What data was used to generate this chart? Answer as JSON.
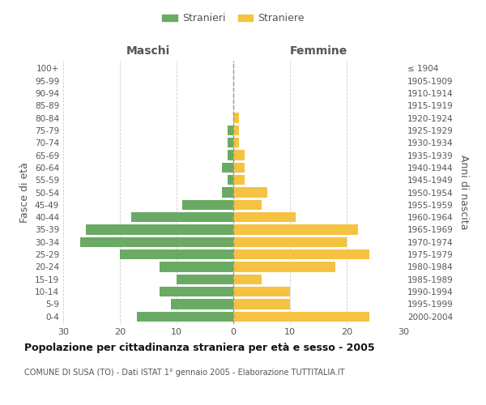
{
  "age_groups": [
    "0-4",
    "5-9",
    "10-14",
    "15-19",
    "20-24",
    "25-29",
    "30-34",
    "35-39",
    "40-44",
    "45-49",
    "50-54",
    "55-59",
    "60-64",
    "65-69",
    "70-74",
    "75-79",
    "80-84",
    "85-89",
    "90-94",
    "95-99",
    "100+"
  ],
  "birth_years": [
    "2000-2004",
    "1995-1999",
    "1990-1994",
    "1985-1989",
    "1980-1984",
    "1975-1979",
    "1970-1974",
    "1965-1969",
    "1960-1964",
    "1955-1959",
    "1950-1954",
    "1945-1949",
    "1940-1944",
    "1935-1939",
    "1930-1934",
    "1925-1929",
    "1920-1924",
    "1915-1919",
    "1910-1914",
    "1905-1909",
    "≤ 1904"
  ],
  "maschi": [
    17,
    11,
    13,
    10,
    13,
    20,
    27,
    26,
    18,
    9,
    2,
    1,
    2,
    1,
    1,
    1,
    0,
    0,
    0,
    0,
    0
  ],
  "femmine": [
    24,
    10,
    10,
    5,
    18,
    24,
    20,
    22,
    11,
    5,
    6,
    2,
    2,
    2,
    1,
    1,
    1,
    0,
    0,
    0,
    0
  ],
  "male_color": "#6aaa64",
  "female_color": "#f5c242",
  "bar_height": 0.8,
  "xlim": 30,
  "title": "Popolazione per cittadinanza straniera per età e sesso - 2005",
  "subtitle": "COMUNE DI SUSA (TO) - Dati ISTAT 1° gennaio 2005 - Elaborazione TUTTITALIA.IT",
  "ylabel_left": "Fasce di età",
  "ylabel_right": "Anni di nascita",
  "legend_male": "Stranieri",
  "legend_female": "Straniere",
  "maschi_header": "Maschi",
  "femmine_header": "Femmine",
  "background_color": "#ffffff",
  "grid_color": "#cccccc",
  "text_color": "#555555",
  "center_line_color": "#999977"
}
